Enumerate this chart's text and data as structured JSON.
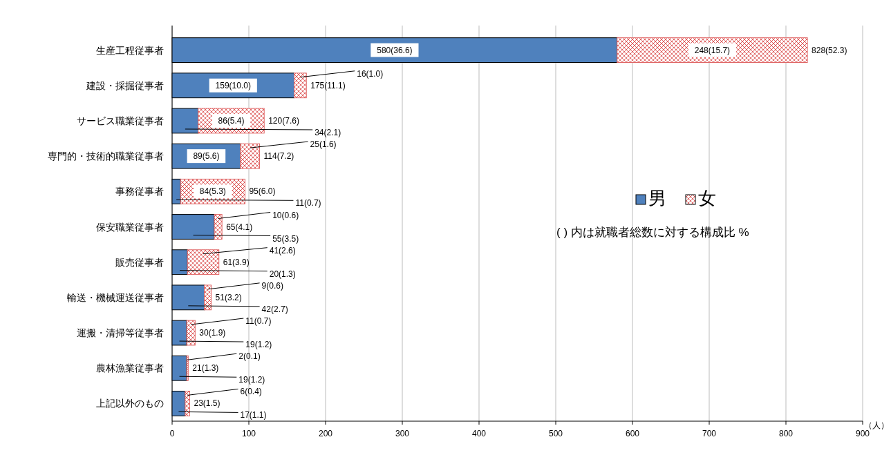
{
  "chart_data": {
    "type": "bar",
    "orientation": "horizontal",
    "stacked": true,
    "categories": [
      "生産工程従事者",
      "建設・採掘従事者",
      "サービス職業従事者",
      "専門的・技術的職業従事者",
      "事務従事者",
      "保安職業従事者",
      "販売従事者",
      "輸送・機械運送従事者",
      "運搬・清掃等従事者",
      "農林漁業従事者",
      "上記以外のもの"
    ],
    "series": [
      {
        "name": "男",
        "color": "#4f81bd",
        "values": [
          580,
          159,
          34,
          89,
          11,
          55,
          20,
          42,
          19,
          19,
          17
        ],
        "value_labels": [
          "580(36.6)",
          "159(10.0)",
          "34(2.1)",
          "89(5.6)",
          "11(0.7)",
          "55(3.5)",
          "20(1.3)",
          "42(2.7)",
          "19(1.2)",
          "19(1.2)",
          "17(1.1)"
        ]
      },
      {
        "name": "女",
        "color": "#e06666",
        "values": [
          248,
          16,
          86,
          25,
          84,
          10,
          41,
          9,
          11,
          2,
          6
        ],
        "value_labels": [
          "248(15.7)",
          "16(1.0)",
          "86(5.4)",
          "25(1.6)",
          "84(5.3)",
          "10(0.6)",
          "41(2.6)",
          "9(0.6)",
          "11(0.7)",
          "2(0.1)",
          "6(0.4)"
        ]
      }
    ],
    "totals": [
      "828(52.3)",
      "175(11.1)",
      "120(7.6)",
      "114(7.2)",
      "95(6.0)",
      "65(4.1)",
      "61(3.9)",
      "51(3.2)",
      "30(1.9)",
      "21(1.3)",
      "23(1.5)"
    ],
    "xlim": [
      0,
      900
    ],
    "xticks": [
      0,
      100,
      200,
      300,
      400,
      500,
      600,
      700,
      800,
      900
    ],
    "xlabel": "（人）",
    "grid": "x",
    "legend": "right",
    "annotations": [
      "( ) 内は就職者総数に対する構成比 %"
    ]
  }
}
